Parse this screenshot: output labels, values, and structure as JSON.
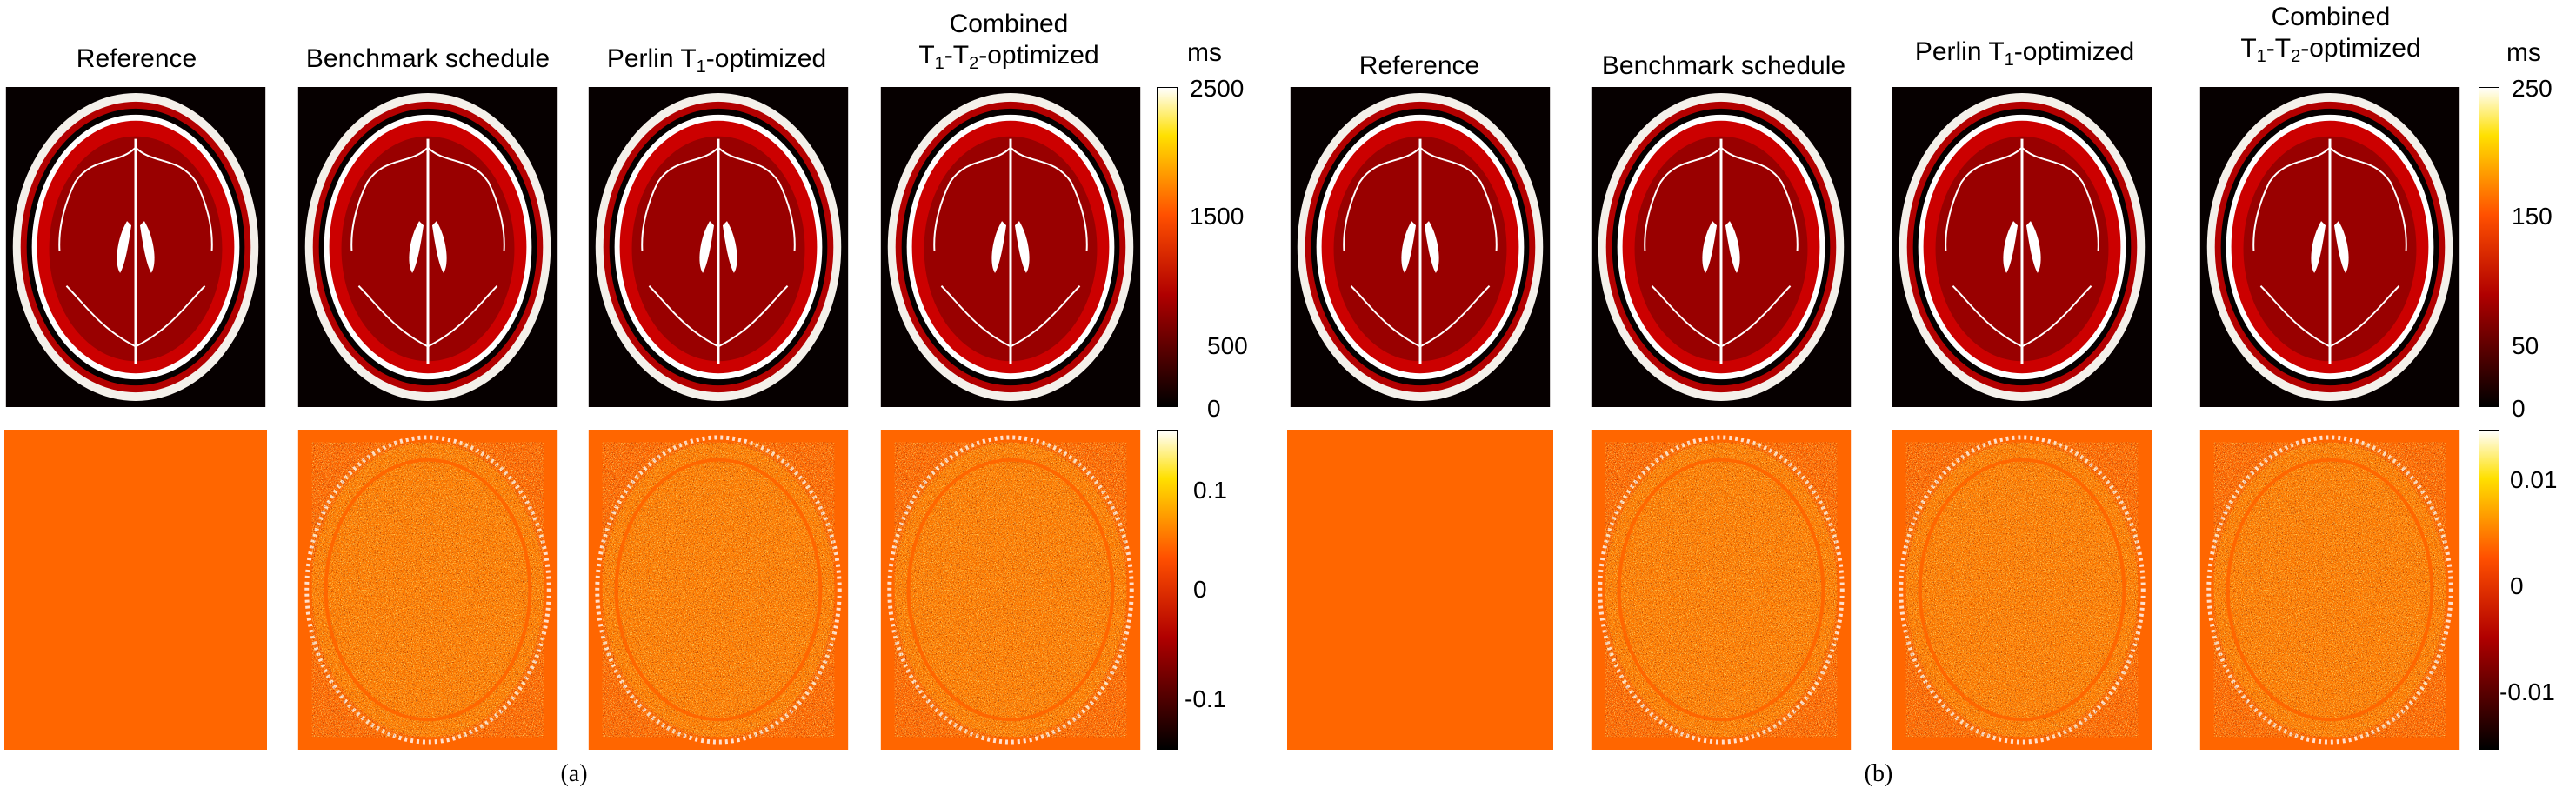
{
  "columns": [
    {
      "title_a": "Reference"
    },
    {
      "title_a": "Benchmark schedule"
    },
    {
      "title_pre": "Perlin T",
      "title_sub": "1",
      "title_post": "-optimized"
    },
    {
      "title_line1": "Combined",
      "title_pre": "T",
      "title_sub": "1",
      "title_mid": "-T",
      "title_sub2": "2",
      "title_post": "-optimized"
    }
  ],
  "figure_a": {
    "caption": "(a)",
    "unit": "ms",
    "top_colorbar_ticks": [
      "2500",
      "1500",
      "500",
      "0"
    ],
    "bottom_colorbar_ticks": [
      "0.1",
      "0",
      "-0.1"
    ]
  },
  "figure_b": {
    "caption": "(b)",
    "unit": "ms",
    "top_colorbar_ticks": [
      "250",
      "150",
      "50",
      "0"
    ],
    "bottom_colorbar_ticks": [
      "0.01",
      "0",
      "-0.01"
    ]
  },
  "colors": {
    "hot_dark": "#1a0000",
    "hot_red": "#c00000",
    "hot_orange": "#ff6a00",
    "hot_yellow": "#ffe000",
    "error_bg": "#ff6600"
  }
}
